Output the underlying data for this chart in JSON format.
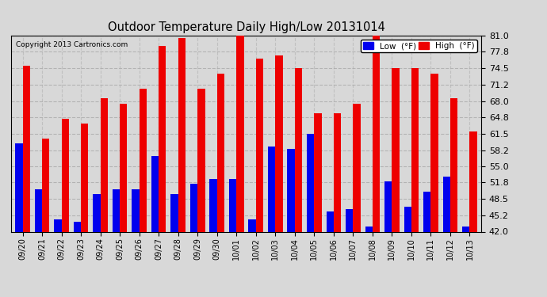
{
  "title": "Outdoor Temperature Daily High/Low 20131014",
  "copyright": "Copyright 2013 Cartronics.com",
  "legend_low": "Low  (°F)",
  "legend_high": "High  (°F)",
  "low_color": "#0000ee",
  "high_color": "#ee0000",
  "background_color": "#d8d8d8",
  "plot_bg_color": "#d8d8d8",
  "ylim": [
    42.0,
    81.0
  ],
  "yticks": [
    42.0,
    45.2,
    48.5,
    51.8,
    55.0,
    58.2,
    61.5,
    64.8,
    68.0,
    71.2,
    74.5,
    77.8,
    81.0
  ],
  "dates": [
    "09/20",
    "09/21",
    "09/22",
    "09/23",
    "09/24",
    "09/25",
    "09/26",
    "09/27",
    "09/28",
    "09/29",
    "09/30",
    "10/01",
    "10/02",
    "10/03",
    "10/04",
    "10/05",
    "10/06",
    "10/07",
    "10/08",
    "10/09",
    "10/10",
    "10/11",
    "10/12",
    "10/13"
  ],
  "highs": [
    75.0,
    60.5,
    64.5,
    63.5,
    68.5,
    67.5,
    70.5,
    79.0,
    80.5,
    70.5,
    73.5,
    81.0,
    76.5,
    77.0,
    74.5,
    65.5,
    65.5,
    67.5,
    81.0,
    74.5,
    74.5,
    73.5,
    68.5,
    62.0
  ],
  "lows": [
    59.5,
    50.5,
    44.5,
    44.0,
    49.5,
    50.5,
    50.5,
    57.0,
    49.5,
    51.5,
    52.5,
    52.5,
    44.5,
    59.0,
    58.5,
    61.5,
    46.0,
    46.5,
    43.0,
    52.0,
    47.0,
    50.0,
    53.0,
    43.0
  ],
  "bar_width": 0.38,
  "figsize": [
    6.9,
    3.75
  ],
  "dpi": 100
}
